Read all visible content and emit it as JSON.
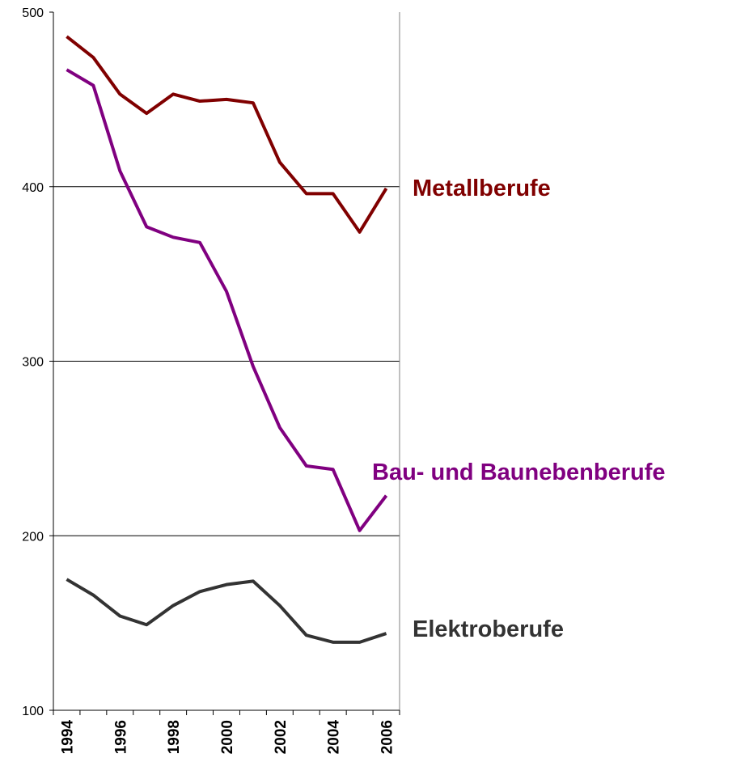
{
  "chart_data": {
    "type": "line",
    "categories": [
      "1994",
      null,
      "1996",
      null,
      "1998",
      null,
      "2000",
      null,
      "2002",
      null,
      "2004",
      null,
      "2006"
    ],
    "series": [
      {
        "name": "Metallberufe",
        "color": "#800000",
        "values": [
          486,
          474,
          453,
          442,
          453,
          449,
          450,
          448,
          414,
          396,
          396,
          374,
          399
        ]
      },
      {
        "name": "Bau- und Baunebenberufe",
        "color": "#800080",
        "values": [
          467,
          458,
          409,
          377,
          371,
          368,
          340,
          297,
          262,
          240,
          238,
          203,
          223
        ]
      },
      {
        "name": "Elektroberufe",
        "color": "#333333",
        "values": [
          175,
          166,
          154,
          149,
          160,
          168,
          172,
          174,
          160,
          143,
          139,
          139,
          144
        ]
      }
    ],
    "ylim": [
      100,
      500
    ],
    "yticks": [
      100,
      200,
      300,
      400,
      500
    ],
    "grid": true
  }
}
